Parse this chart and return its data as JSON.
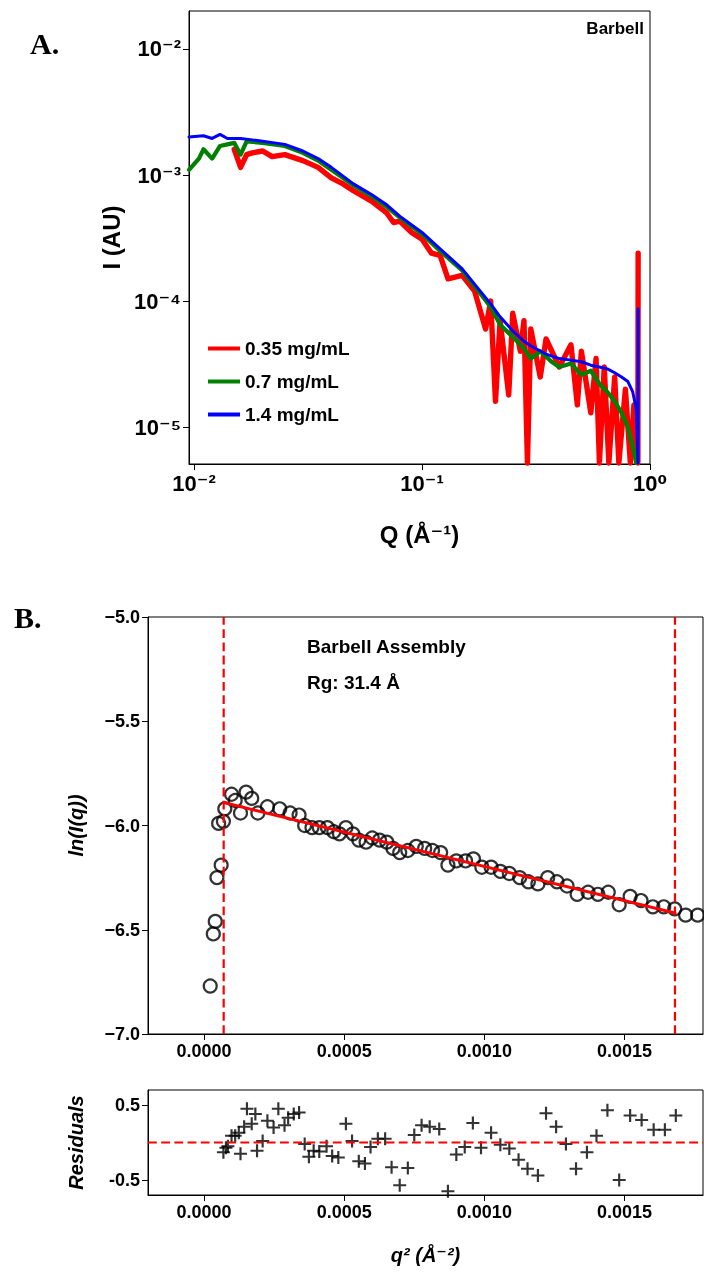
{
  "chart_data": [
    {
      "type": "line",
      "xlabel": "Q (Å⁻¹)",
      "ylabel": "I (AU)",
      "annotations": [
        "A.",
        "Barbell"
      ],
      "log": "xy",
      "grid": false,
      "legend": "bottom left",
      "xlim": [
        0.0095,
        1
      ],
      "ylim": [
        5.1e-06,
        0.02
      ],
      "xticks": [
        {
          "value": 0.01,
          "label": "10⁻²"
        },
        {
          "value": 0.1,
          "label": "10⁻¹"
        },
        {
          "value": 1,
          "label": "10⁰"
        }
      ],
      "yticks": [
        {
          "value": 1e-05,
          "label": "10⁻⁵"
        },
        {
          "value": 0.0001,
          "label": "10⁻⁴"
        },
        {
          "value": 0.001,
          "label": "10⁻³"
        },
        {
          "value": 0.01,
          "label": "10⁻²"
        }
      ],
      "series": [
        {
          "name": "0.35 mg/mL",
          "color": "#ff0000",
          "x": [
            0.015,
            0.016,
            0.017,
            0.018,
            0.02,
            0.022,
            0.025,
            0.03,
            0.035,
            0.04,
            0.045,
            0.05,
            0.06,
            0.07,
            0.075,
            0.08,
            0.09,
            0.1,
            0.11,
            0.12,
            0.13,
            0.15,
            0.17,
            0.19,
            0.2,
            0.21,
            0.22,
            0.24,
            0.25,
            0.27,
            0.28,
            0.29,
            0.3,
            0.33,
            0.35,
            0.4,
            0.45,
            0.48,
            0.5,
            0.55,
            0.58,
            0.6,
            0.63,
            0.66,
            0.7,
            0.73,
            0.78,
            0.82,
            0.85,
            0.885,
            0.887
          ],
          "values": [
            0.0016,
            0.00115,
            0.00145,
            0.0015,
            0.00155,
            0.0014,
            0.00145,
            0.0013,
            0.00115,
            0.00095,
            0.00085,
            0.00075,
            0.00062,
            0.0005,
            0.00042,
            0.00043,
            0.00035,
            0.00031,
            0.00024,
            0.00023,
            0.00015,
            0.00016,
            0.00012,
            6e-05,
            0.0001,
            1.6e-05,
            7e-05,
            1.8e-05,
            8e-05,
            4e-05,
            7e-05,
            5.2e-06,
            6e-05,
            2.5e-05,
            5e-05,
            3e-05,
            4.5e-05,
            1.5e-05,
            4e-05,
            1.3e-05,
            3.5e-05,
            5.2e-06,
            3e-05,
            5.2e-06,
            2.5e-05,
            5.2e-06,
            2e-05,
            5.2e-06,
            1.5e-05,
            5.2e-06,
            0.00024
          ]
        },
        {
          "name": "0.7 mg/mL",
          "color": "#008000",
          "x": [
            0.0095,
            0.0105,
            0.011,
            0.012,
            0.013,
            0.014,
            0.015,
            0.016,
            0.017,
            0.02,
            0.025,
            0.03,
            0.035,
            0.04,
            0.05,
            0.06,
            0.07,
            0.08,
            0.1,
            0.12,
            0.15,
            0.18,
            0.2,
            0.22,
            0.25,
            0.28,
            0.3,
            0.33,
            0.37,
            0.4,
            0.45,
            0.5,
            0.55,
            0.6,
            0.65,
            0.7,
            0.75,
            0.8,
            0.84,
            0.87
          ],
          "values": [
            0.0011,
            0.00135,
            0.0016,
            0.00135,
            0.0017,
            0.00175,
            0.0018,
            0.00145,
            0.00185,
            0.0018,
            0.0017,
            0.0015,
            0.0013,
            0.0011,
            0.00083,
            0.00068,
            0.00056,
            0.00046,
            0.00034,
            0.00025,
            0.000175,
            0.000115,
            9e-05,
            6.5e-05,
            5.2e-05,
            4.2e-05,
            3.5e-05,
            4e-05,
            3.3e-05,
            3e-05,
            3.2e-05,
            2.6e-05,
            2.8e-05,
            2.2e-05,
            1.9e-05,
            1.6e-05,
            1.3e-05,
            1e-05,
            7e-06,
            5.2e-06
          ]
        },
        {
          "name": "1.4 mg/mL",
          "color": "#0000ff",
          "x": [
            0.0095,
            0.011,
            0.012,
            0.013,
            0.014,
            0.016,
            0.018,
            0.02,
            0.025,
            0.03,
            0.035,
            0.04,
            0.05,
            0.06,
            0.07,
            0.08,
            0.1,
            0.12,
            0.15,
            0.18,
            0.2,
            0.22,
            0.25,
            0.28,
            0.3,
            0.35,
            0.4,
            0.45,
            0.5,
            0.55,
            0.6,
            0.65,
            0.7,
            0.75,
            0.8,
            0.84,
            0.87,
            0.886,
            0.887
          ],
          "values": [
            0.002,
            0.00205,
            0.00195,
            0.0021,
            0.00195,
            0.00195,
            0.0019,
            0.00185,
            0.00175,
            0.00155,
            0.00135,
            0.00115,
            0.00085,
            0.0007,
            0.00058,
            0.00047,
            0.00035,
            0.00026,
            0.00018,
            0.00012,
            9.5e-05,
            7.5e-05,
            5.8e-05,
            4.8e-05,
            4.4e-05,
            3.8e-05,
            3.5e-05,
            3.4e-05,
            3.3e-05,
            3.1e-05,
            3e-05,
            2.9e-05,
            2.7e-05,
            2.5e-05,
            2.3e-05,
            1.9e-05,
            1.4e-05,
            5.2e-06,
            8.7e-05
          ]
        }
      ]
    },
    {
      "type": "scatter",
      "ylabel": "ln(I(q))",
      "annotations": [
        "B.",
        "Barbell Assembly",
        "Rg: 31.4 Å"
      ],
      "grid": false,
      "xlim": [
        -0.0002,
        0.00178
      ],
      "ylim": [
        -7,
        -5
      ],
      "xticks": [
        {
          "value": 0,
          "label": "0.0000"
        },
        {
          "value": 0.0005,
          "label": "0.0005"
        },
        {
          "value": 0.001,
          "label": "0.0010"
        },
        {
          "value": 0.0015,
          "label": "0.0015"
        }
      ],
      "yticks": [
        {
          "value": -7,
          "label": "−7.0"
        },
        {
          "value": -6.5,
          "label": "−6.5"
        },
        {
          "value": -6,
          "label": "−6.0"
        },
        {
          "value": -5.5,
          "label": "−5.5"
        },
        {
          "value": -5,
          "label": "−5.0"
        }
      ],
      "ref_lines": [
        {
          "axis": "x",
          "value": 7e-05,
          "color": "#ff0000",
          "line_style": "dashed"
        },
        {
          "axis": "x",
          "value": 0.00168,
          "color": "#ff0000",
          "line_style": "dashed"
        }
      ],
      "series": [
        {
          "type": "scatter",
          "marker": "circle",
          "color": "#000000",
          "x": [
            2.2e-05,
            3.3e-05,
            4e-05,
            4.6e-05,
            6.1e-05,
            5.2e-05,
            6.9e-05,
            7.4e-05,
            9.8e-05,
            0.000111,
            0.00013,
            0.00015,
            0.00017,
            0.000192,
            0.000226,
            0.00027,
            0.000307,
            0.000339,
            0.000359,
            0.000385,
            0.000411,
            0.00044,
            0.000463,
            0.000483,
            0.000506,
            0.000531,
            0.000552,
            0.000578,
            0.0006,
            0.000626,
            0.000652,
            0.000674,
            0.000698,
            0.000727,
            0.000757,
            0.000787,
            0.000815,
            0.000844,
            0.00087,
            0.0009,
            0.000933,
            0.000961,
            0.000991,
            0.001024,
            0.001057,
            0.001089,
            0.001126,
            0.001157,
            0.001191,
            0.001226,
            0.001259,
            0.001295,
            0.001331,
            0.00137,
            0.001405,
            0.001442,
            0.001481,
            0.00152,
            0.001559,
            0.001601,
            0.00164,
            0.001679,
            0.001718,
            0.001761
          ],
          "values": [
            -6.77,
            -6.52,
            -6.46,
            -6.25,
            -6.19,
            -5.99,
            -5.98,
            -5.92,
            -5.85,
            -5.88,
            -5.94,
            -5.84,
            -5.87,
            -5.94,
            -5.91,
            -5.92,
            -5.94,
            -5.95,
            -6.0,
            -6.01,
            -6.01,
            -6.01,
            -6.03,
            -6.04,
            -6.01,
            -6.04,
            -6.07,
            -6.08,
            -6.06,
            -6.07,
            -6.08,
            -6.11,
            -6.13,
            -6.12,
            -6.1,
            -6.11,
            -6.12,
            -6.13,
            -6.19,
            -6.17,
            -6.17,
            -6.16,
            -6.2,
            -6.2,
            -6.22,
            -6.23,
            -6.25,
            -6.27,
            -6.28,
            -6.25,
            -6.27,
            -6.29,
            -6.33,
            -6.32,
            -6.33,
            -6.32,
            -6.38,
            -6.34,
            -6.36,
            -6.39,
            -6.39,
            -6.4,
            -6.43,
            -6.43
          ]
        },
        {
          "type": "line",
          "color": "#ff0000",
          "x": [
            7e-05,
            0.00168
          ],
          "values": [
            -5.89,
            -6.42
          ]
        }
      ]
    },
    {
      "type": "scatter",
      "xlabel": "q² (Å⁻²)",
      "ylabel": "Residuals",
      "marker": "cross",
      "grid": false,
      "xlim": [
        -0.0002,
        0.00178
      ],
      "ylim": [
        -0.7,
        0.7
      ],
      "xticks": [
        {
          "value": 0,
          "label": "0.0000"
        },
        {
          "value": 0.0005,
          "label": "0.0005"
        },
        {
          "value": 0.001,
          "label": "0.0010"
        },
        {
          "value": 0.0015,
          "label": "0.0015"
        }
      ],
      "yticks": [
        {
          "value": -0.5,
          "label": "-0.5"
        },
        0.5
      ],
      "ref_lines": [
        {
          "axis": "y",
          "value": 0,
          "color": "#ff0000",
          "line_style": "dashed"
        }
      ],
      "series": [
        {
          "type": "scatter",
          "color": "#000000",
          "x": [
            6.9e-05,
            7.8e-05,
            8.5e-05,
            9.8e-05,
            0.000111,
            0.000124,
            0.00013,
            0.000143,
            0.000153,
            0.00017,
            0.000183,
            0.000189,
            0.000209,
            0.000226,
            0.000248,
            0.000265,
            0.000287,
            0.0003,
            0.00032,
            0.000339,
            0.000359,
            0.000374,
            0.000391,
            0.000411,
            0.000437,
            0.000457,
            0.000479,
            0.000506,
            0.000528,
            0.000552,
            0.000574,
            0.000594,
            0.00062,
            0.000646,
            0.000669,
            0.000698,
            0.000727,
            0.00075,
            0.000776,
            0.000805,
            0.000839,
            0.00087,
            0.0009,
            0.00093,
            0.000959,
            0.000988,
            0.001024,
            0.001057,
            0.001089,
            0.001122,
            0.001154,
            0.001191,
            0.00122,
            0.001256,
            0.001291,
            0.001327,
            0.001366,
            0.0014,
            0.001439,
            0.001481,
            0.00152,
            0.001561,
            0.001604,
            0.001644,
            0.001683
          ],
          "values": [
            -0.13,
            -0.07,
            -0.05,
            0.09,
            0.09,
            0.13,
            -0.15,
            0.21,
            0.45,
            0.25,
            0.38,
            -0.11,
            0.02,
            0.29,
            0.2,
            0.45,
            0.23,
            0.33,
            0.38,
            0.4,
            -0.02,
            -0.19,
            -0.11,
            -0.12,
            -0.05,
            -0.18,
            -0.2,
            0.25,
            0.02,
            -0.25,
            -0.28,
            -0.06,
            0.05,
            0.05,
            -0.33,
            -0.57,
            -0.34,
            0.1,
            0.23,
            0.21,
            0.18,
            -0.65,
            -0.16,
            -0.06,
            0.26,
            -0.07,
            0.13,
            -0.03,
            -0.08,
            -0.23,
            -0.35,
            -0.44,
            0.39,
            0.21,
            -0.02,
            -0.35,
            -0.13,
            0.09,
            0.43,
            -0.5,
            0.36,
            0.3,
            0.17,
            0.17,
            0.36
          ]
        }
      ]
    }
  ]
}
